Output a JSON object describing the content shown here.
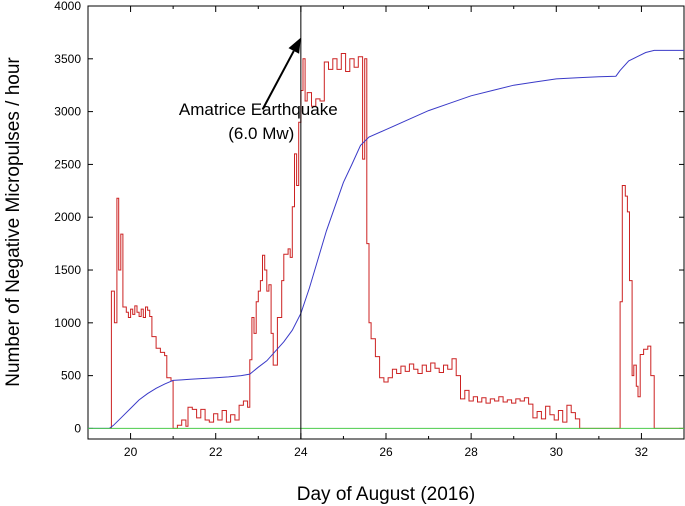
{
  "chart_data": {
    "type": "line",
    "title": "",
    "xlabel": "Day of August (2016)",
    "ylabel": "Number of Negative Micropulses / hour",
    "xlim": [
      19,
      33
    ],
    "ylim": [
      -100,
      4000
    ],
    "xticks": [
      20,
      22,
      24,
      26,
      28,
      30,
      32
    ],
    "yticks": [
      0,
      500,
      1000,
      1500,
      2000,
      2500,
      3000,
      3500,
      4000
    ],
    "grid": false,
    "legend": "none",
    "annotations": {
      "line1": "Amatrice Earthquake",
      "line2": "(6.0 Mw)",
      "arrow_target": {
        "x": 24.0,
        "y": 3700
      },
      "arrow_from": {
        "x": 23.1,
        "y": 3020
      },
      "text_anchor": {
        "x": 23.0,
        "y": 2970
      }
    },
    "event_line": {
      "x": 24.0
    },
    "series": [
      {
        "color": "#cc2222",
        "step": true,
        "points": [
          [
            19.5,
            0
          ],
          [
            19.55,
            1300
          ],
          [
            19.62,
            1000
          ],
          [
            19.68,
            2180
          ],
          [
            19.72,
            1500
          ],
          [
            19.77,
            1840
          ],
          [
            19.82,
            1150
          ],
          [
            19.9,
            1100
          ],
          [
            19.95,
            1050
          ],
          [
            20.0,
            1130
          ],
          [
            20.05,
            1080
          ],
          [
            20.1,
            1160
          ],
          [
            20.15,
            1100
          ],
          [
            20.2,
            1060
          ],
          [
            20.25,
            1130
          ],
          [
            20.3,
            1050
          ],
          [
            20.35,
            1150
          ],
          [
            20.4,
            1120
          ],
          [
            20.45,
            1060
          ],
          [
            20.5,
            870
          ],
          [
            20.6,
            760
          ],
          [
            20.7,
            720
          ],
          [
            20.8,
            690
          ],
          [
            20.85,
            480
          ],
          [
            20.95,
            450
          ],
          [
            21.0,
            0
          ],
          [
            21.1,
            30
          ],
          [
            21.2,
            80
          ],
          [
            21.3,
            20
          ],
          [
            21.35,
            200
          ],
          [
            21.45,
            180
          ],
          [
            21.55,
            100
          ],
          [
            21.65,
            180
          ],
          [
            21.75,
            80
          ],
          [
            21.85,
            60
          ],
          [
            21.95,
            140
          ],
          [
            22.05,
            80
          ],
          [
            22.15,
            170
          ],
          [
            22.25,
            60
          ],
          [
            22.35,
            130
          ],
          [
            22.45,
            80
          ],
          [
            22.55,
            220
          ],
          [
            22.65,
            260
          ],
          [
            22.75,
            200
          ],
          [
            22.8,
            650
          ],
          [
            22.85,
            1050
          ],
          [
            22.9,
            900
          ],
          [
            22.95,
            1200
          ],
          [
            23.0,
            1300
          ],
          [
            23.05,
            1400
          ],
          [
            23.1,
            1640
          ],
          [
            23.15,
            1500
          ],
          [
            23.2,
            1300
          ],
          [
            23.25,
            1360
          ],
          [
            23.3,
            900
          ],
          [
            23.35,
            600
          ],
          [
            23.45,
            1050
          ],
          [
            23.55,
            1400
          ],
          [
            23.6,
            1650
          ],
          [
            23.7,
            1700
          ],
          [
            23.75,
            1620
          ],
          [
            23.8,
            2100
          ],
          [
            23.85,
            2600
          ],
          [
            23.9,
            2300
          ],
          [
            23.95,
            2900
          ],
          [
            24.0,
            3200
          ],
          [
            24.05,
            3500
          ],
          [
            24.1,
            3100
          ],
          [
            24.15,
            3180
          ],
          [
            24.25,
            3050
          ],
          [
            24.35,
            3120
          ],
          [
            24.45,
            3100
          ],
          [
            24.55,
            3470
          ],
          [
            24.65,
            3400
          ],
          [
            24.75,
            3500
          ],
          [
            24.85,
            3400
          ],
          [
            24.95,
            3550
          ],
          [
            25.05,
            3380
          ],
          [
            25.15,
            3500
          ],
          [
            25.25,
            3420
          ],
          [
            25.35,
            3520
          ],
          [
            25.45,
            2550
          ],
          [
            25.5,
            3500
          ],
          [
            25.55,
            1750
          ],
          [
            25.6,
            1000
          ],
          [
            25.65,
            850
          ],
          [
            25.75,
            680
          ],
          [
            25.85,
            480
          ],
          [
            25.95,
            440
          ],
          [
            26.05,
            480
          ],
          [
            26.15,
            560
          ],
          [
            26.25,
            520
          ],
          [
            26.35,
            590
          ],
          [
            26.45,
            540
          ],
          [
            26.55,
            610
          ],
          [
            26.65,
            560
          ],
          [
            26.75,
            520
          ],
          [
            26.85,
            600
          ],
          [
            26.95,
            540
          ],
          [
            27.05,
            620
          ],
          [
            27.15,
            570
          ],
          [
            27.25,
            530
          ],
          [
            27.35,
            600
          ],
          [
            27.45,
            560
          ],
          [
            27.55,
            660
          ],
          [
            27.65,
            500
          ],
          [
            27.75,
            280
          ],
          [
            27.85,
            360
          ],
          [
            27.95,
            260
          ],
          [
            28.05,
            300
          ],
          [
            28.15,
            250
          ],
          [
            28.25,
            290
          ],
          [
            28.35,
            240
          ],
          [
            28.45,
            280
          ],
          [
            28.55,
            260
          ],
          [
            28.65,
            300
          ],
          [
            28.75,
            250
          ],
          [
            28.85,
            270
          ],
          [
            28.95,
            240
          ],
          [
            29.05,
            280
          ],
          [
            29.15,
            260
          ],
          [
            29.25,
            290
          ],
          [
            29.35,
            230
          ],
          [
            29.45,
            100
          ],
          [
            29.55,
            160
          ],
          [
            29.65,
            90
          ],
          [
            29.75,
            210
          ],
          [
            29.85,
            130
          ],
          [
            29.95,
            80
          ],
          [
            30.05,
            170
          ],
          [
            30.15,
            60
          ],
          [
            30.25,
            220
          ],
          [
            30.35,
            150
          ],
          [
            30.45,
            90
          ],
          [
            30.55,
            0
          ],
          [
            31.45,
            0
          ],
          [
            31.5,
            1200
          ],
          [
            31.55,
            2300
          ],
          [
            31.62,
            2200
          ],
          [
            31.67,
            2050
          ],
          [
            31.72,
            1400
          ],
          [
            31.78,
            500
          ],
          [
            31.82,
            600
          ],
          [
            31.88,
            400
          ],
          [
            31.92,
            300
          ],
          [
            31.97,
            700
          ],
          [
            32.05,
            750
          ],
          [
            32.15,
            780
          ],
          [
            32.22,
            500
          ],
          [
            32.3,
            0
          ],
          [
            33.0,
            0
          ]
        ]
      },
      {
        "color": "#3a3ac8",
        "step": false,
        "points": [
          [
            19.0,
            0
          ],
          [
            19.5,
            0
          ],
          [
            19.6,
            30
          ],
          [
            19.8,
            110
          ],
          [
            20.0,
            190
          ],
          [
            20.2,
            270
          ],
          [
            20.4,
            330
          ],
          [
            20.6,
            380
          ],
          [
            20.8,
            420
          ],
          [
            21.0,
            455
          ],
          [
            21.2,
            460
          ],
          [
            21.4,
            465
          ],
          [
            21.6,
            470
          ],
          [
            21.8,
            475
          ],
          [
            22.0,
            480
          ],
          [
            22.3,
            488
          ],
          [
            22.6,
            500
          ],
          [
            22.8,
            515
          ],
          [
            23.0,
            580
          ],
          [
            23.2,
            640
          ],
          [
            23.4,
            730
          ],
          [
            23.6,
            820
          ],
          [
            23.8,
            930
          ],
          [
            24.0,
            1090
          ],
          [
            24.2,
            1330
          ],
          [
            24.4,
            1600
          ],
          [
            24.6,
            1870
          ],
          [
            24.8,
            2100
          ],
          [
            25.0,
            2330
          ],
          [
            25.2,
            2500
          ],
          [
            25.4,
            2680
          ],
          [
            25.6,
            2760
          ],
          [
            26.0,
            2830
          ],
          [
            26.5,
            2920
          ],
          [
            27.0,
            3010
          ],
          [
            27.5,
            3080
          ],
          [
            28.0,
            3150
          ],
          [
            28.5,
            3200
          ],
          [
            29.0,
            3250
          ],
          [
            29.5,
            3280
          ],
          [
            30.0,
            3310
          ],
          [
            30.5,
            3320
          ],
          [
            31.0,
            3330
          ],
          [
            31.4,
            3335
          ],
          [
            31.5,
            3390
          ],
          [
            31.7,
            3480
          ],
          [
            31.9,
            3520
          ],
          [
            32.1,
            3560
          ],
          [
            32.3,
            3580
          ],
          [
            33.0,
            3580
          ]
        ]
      },
      {
        "color": "#4ccc4c",
        "step": false,
        "points": [
          [
            19.0,
            0
          ],
          [
            33.0,
            0
          ]
        ]
      }
    ]
  }
}
